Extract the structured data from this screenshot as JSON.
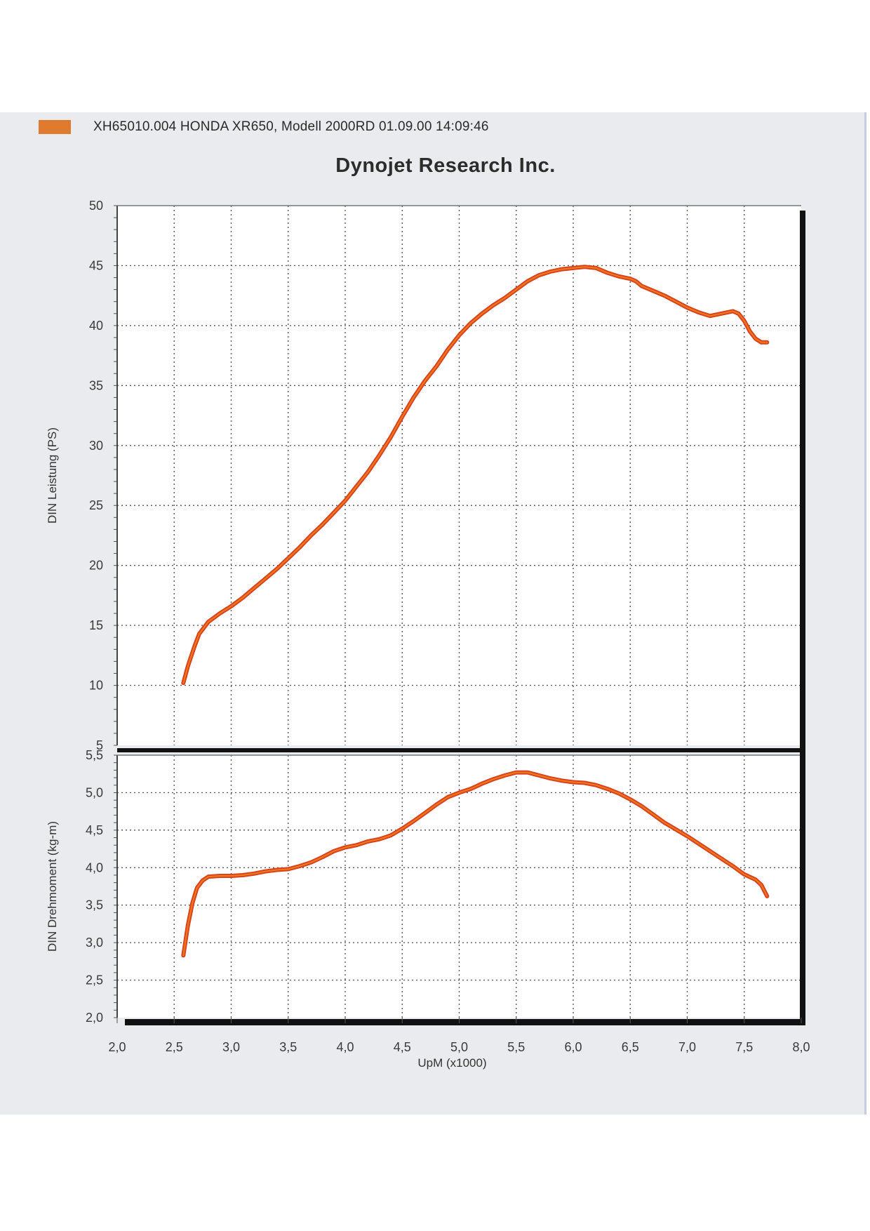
{
  "header": {
    "legend_swatch_color": "#e07a2e",
    "legend_text": "XH65010.004   HONDA XR650, Modell 2000RD  01.09.00 14:09:46",
    "title": "Dynojet  Research  Inc."
  },
  "colors": {
    "curve": "#d8421f",
    "curve_highlight": "#f07a1a",
    "grid": "#5a5a5a",
    "background": "#e9ebee",
    "plot_background": "#ffffff"
  },
  "chart_data": [
    {
      "type": "line",
      "ylabel": "DIN Leistung (PS)",
      "xlim": [
        2.0,
        8.0
      ],
      "ylim": [
        5,
        50
      ],
      "yticks": [
        "5",
        "10",
        "15",
        "20",
        "25",
        "30",
        "35",
        "40",
        "45",
        "50"
      ],
      "ytick_values": [
        5,
        10,
        15,
        20,
        25,
        30,
        35,
        40,
        45,
        50
      ],
      "grid": true,
      "series": [
        {
          "x": [
            2.58,
            2.62,
            2.68,
            2.72,
            2.8,
            2.9,
            3.0,
            3.1,
            3.2,
            3.3,
            3.4,
            3.5,
            3.6,
            3.7,
            3.8,
            3.9,
            4.0,
            4.1,
            4.2,
            4.3,
            4.4,
            4.5,
            4.6,
            4.7,
            4.8,
            4.9,
            5.0,
            5.1,
            5.2,
            5.3,
            5.4,
            5.5,
            5.6,
            5.7,
            5.8,
            5.9,
            6.0,
            6.1,
            6.2,
            6.3,
            6.4,
            6.5,
            6.55,
            6.6,
            6.7,
            6.8,
            6.9,
            7.0,
            7.1,
            7.2,
            7.3,
            7.4,
            7.45,
            7.5,
            7.55,
            7.6,
            7.65,
            7.68,
            7.7
          ],
          "y": [
            10.2,
            11.6,
            13.3,
            14.3,
            15.3,
            16.0,
            16.6,
            17.3,
            18.1,
            18.9,
            19.7,
            20.6,
            21.5,
            22.5,
            23.4,
            24.4,
            25.4,
            26.6,
            27.8,
            29.2,
            30.7,
            32.4,
            34.0,
            35.4,
            36.6,
            38.0,
            39.2,
            40.2,
            41.0,
            41.7,
            42.3,
            43.0,
            43.7,
            44.2,
            44.5,
            44.7,
            44.8,
            44.9,
            44.8,
            44.4,
            44.1,
            43.9,
            43.7,
            43.3,
            42.9,
            42.5,
            42.0,
            41.5,
            41.1,
            40.8,
            41.0,
            41.2,
            41.0,
            40.4,
            39.5,
            38.9,
            38.6,
            38.6,
            38.6
          ],
          "note_on_x": "rpm in thousands"
        }
      ]
    },
    {
      "type": "line",
      "xlabel": "UpM (x1000)",
      "ylabel": "DIN Drehmoment (kg-m)",
      "xlim": [
        2.0,
        8.0
      ],
      "ylim": [
        2.0,
        5.5
      ],
      "xticks": [
        "2,0",
        "2,5",
        "3,0",
        "3,5",
        "4,0",
        "4,5",
        "5,0",
        "5,5",
        "6,0",
        "6,5",
        "7,0",
        "7,5",
        "8,0"
      ],
      "xtick_values": [
        2.0,
        2.5,
        3.0,
        3.5,
        4.0,
        4.5,
        5.0,
        5.5,
        6.0,
        6.5,
        7.0,
        7.5,
        8.0
      ],
      "yticks": [
        "2,0",
        "2,5",
        "3,0",
        "3,5",
        "4,0",
        "4,5",
        "5,0",
        "5,5"
      ],
      "ytick_values": [
        2.0,
        2.5,
        3.0,
        3.5,
        4.0,
        4.5,
        5.0,
        5.5
      ],
      "grid": true,
      "series": [
        {
          "x": [
            2.58,
            2.62,
            2.66,
            2.7,
            2.75,
            2.8,
            2.9,
            3.0,
            3.1,
            3.2,
            3.3,
            3.4,
            3.5,
            3.6,
            3.7,
            3.8,
            3.9,
            4.0,
            4.1,
            4.2,
            4.3,
            4.4,
            4.5,
            4.6,
            4.7,
            4.8,
            4.9,
            5.0,
            5.1,
            5.2,
            5.3,
            5.4,
            5.5,
            5.6,
            5.7,
            5.8,
            5.9,
            6.0,
            6.1,
            6.2,
            6.3,
            6.4,
            6.5,
            6.6,
            6.7,
            6.8,
            6.9,
            7.0,
            7.1,
            7.2,
            7.3,
            7.4,
            7.5,
            7.6,
            7.65,
            7.7
          ],
          "y": [
            2.83,
            3.23,
            3.53,
            3.73,
            3.83,
            3.88,
            3.89,
            3.89,
            3.9,
            3.92,
            3.95,
            3.97,
            3.98,
            4.02,
            4.07,
            4.14,
            4.22,
            4.27,
            4.3,
            4.35,
            4.38,
            4.43,
            4.52,
            4.62,
            4.73,
            4.84,
            4.94,
            5.0,
            5.05,
            5.12,
            5.18,
            5.23,
            5.27,
            5.27,
            5.23,
            5.19,
            5.16,
            5.14,
            5.13,
            5.1,
            5.05,
            4.99,
            4.91,
            4.82,
            4.71,
            4.6,
            4.51,
            4.42,
            4.32,
            4.22,
            4.12,
            4.02,
            3.91,
            3.84,
            3.77,
            3.62
          ],
          "note_on_x": "rpm in thousands"
        }
      ]
    }
  ]
}
